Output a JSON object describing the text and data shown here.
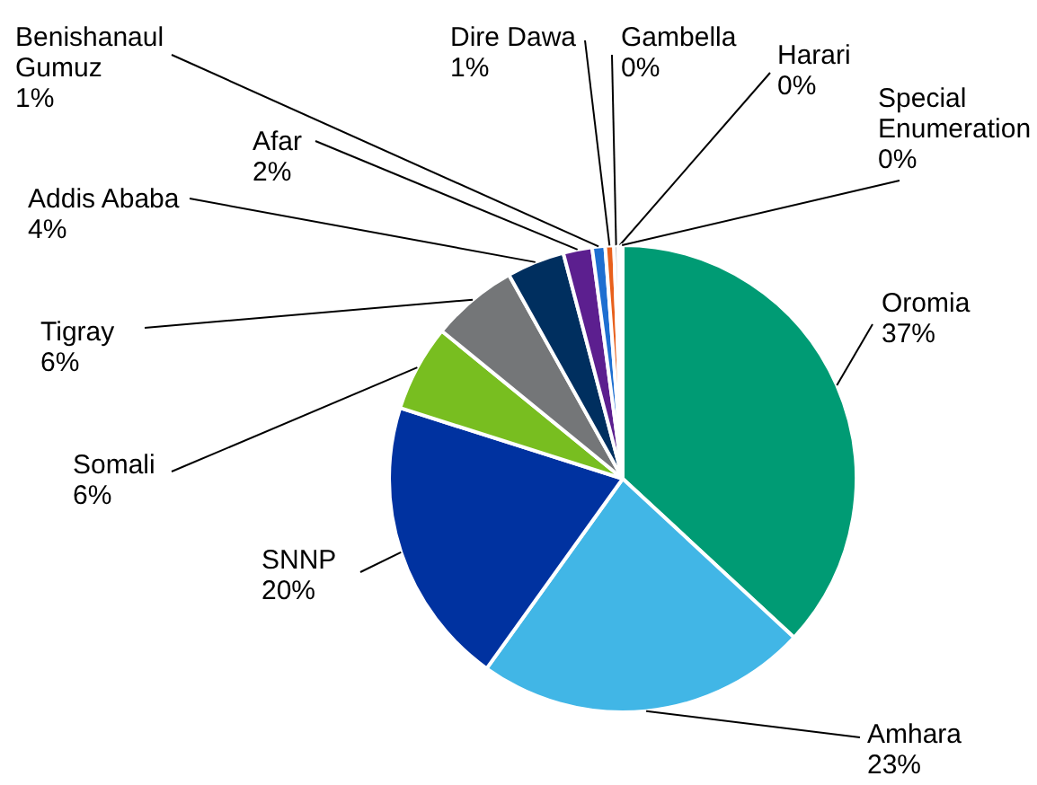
{
  "chart_data": {
    "type": "pie",
    "categories": [
      "Oromia",
      "Amhara",
      "SNNP",
      "Somali",
      "Tigray",
      "Addis Ababa",
      "Afar",
      "Benishanaul Gumuz",
      "Dire Dawa",
      "Gambella",
      "Harari",
      "Special Enumeration"
    ],
    "values": [
      36.9,
      23,
      20,
      6,
      6,
      4,
      2,
      0.9,
      0.6,
      0.3,
      0.2,
      0.1
    ],
    "value_labels": [
      "37%",
      "23%",
      "20%",
      "6%",
      "6%",
      "4%",
      "2%",
      "1%",
      "1%",
      "0%",
      "0%",
      "0%"
    ],
    "colors": [
      "#009b74",
      "#41b6e6",
      "#0032a0",
      "#78be20",
      "#747678",
      "#002f5f",
      "#5c1f8f",
      "#1e6fd1",
      "#e8601c",
      "#a7a8aa",
      "#4fc4b0",
      "#9bd3f0"
    ]
  }
}
